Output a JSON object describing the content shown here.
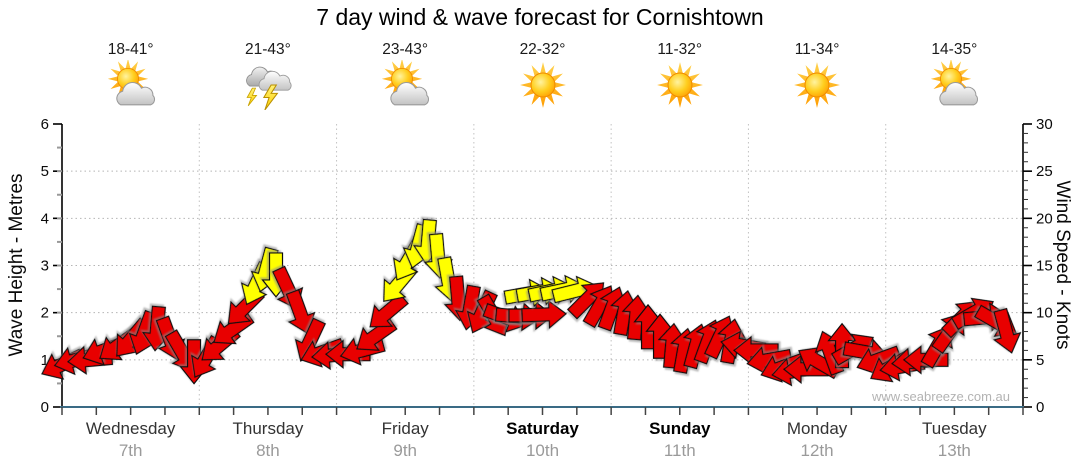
{
  "title": "7 day wind & wave forecast for Cornishtown",
  "watermark": "www.seabreeze.com.au",
  "axes": {
    "left_label": "Wave Height - Metres",
    "right_label": "Wind Speed - Knots",
    "left_ticks": [
      0,
      1,
      2,
      3,
      4,
      5,
      6
    ],
    "right_ticks": [
      0,
      5,
      10,
      15,
      20,
      25,
      30
    ]
  },
  "days": [
    {
      "name": "Wednesday",
      "date": "7th",
      "temps": "18-41°",
      "icon": "partly-cloudy",
      "weekend": false
    },
    {
      "name": "Thursday",
      "date": "8th",
      "temps": "21-43°",
      "icon": "thunderstorm",
      "weekend": false
    },
    {
      "name": "Friday",
      "date": "9th",
      "temps": "23-43°",
      "icon": "partly-cloudy",
      "weekend": false
    },
    {
      "name": "Saturday",
      "date": "10th",
      "temps": "22-32°",
      "icon": "sunny",
      "weekend": true
    },
    {
      "name": "Sunday",
      "date": "11th",
      "temps": "11-32°",
      "icon": "sunny",
      "weekend": true
    },
    {
      "name": "Monday",
      "date": "12th",
      "temps": "11-34°",
      "icon": "sunny",
      "weekend": false
    },
    {
      "name": "Tuesday",
      "date": "13th",
      "temps": "14-35°",
      "icon": "partly-cloudy",
      "weekend": false
    }
  ],
  "colors": {
    "arrow_red": "#e80000",
    "arrow_yellow": "#ffff00",
    "arrow_outline": "#111111",
    "bottom_axis": "#3a6b85",
    "side_axis": "#000000",
    "grid": "#b5b5b5",
    "day_separator": "#c2c2c2",
    "tick_label": "#0a0a0a",
    "date_gray": "#9a9a9a"
  },
  "chart_data": {
    "type": "wind-vector-timeseries",
    "title": "7 day wind & wave forecast for Cornishtown",
    "ylabel_left": "Wave Height - Metres",
    "ylabel_right": "Wind Speed - Knots",
    "y_left_range": [
      0,
      6
    ],
    "y_right_range": [
      0,
      30
    ],
    "grid": true,
    "x_categories": [
      "Wednesday 7th",
      "Thursday 8th",
      "Friday 9th",
      "Saturday 10th",
      "Sunday 11th",
      "Monday 12th",
      "Tuesday 13th"
    ],
    "temperatures": [
      "18-41°",
      "21-43°",
      "23-43°",
      "22-32°",
      "11-32°",
      "11-34°",
      "14-35°"
    ],
    "weather_icons": [
      "partly-cloudy",
      "thunderstorm",
      "partly-cloudy",
      "sunny",
      "sunny",
      "sunny",
      "partly-cloudy"
    ],
    "arrow_format": [
      "time_fraction_0to1",
      "wind_speed_knots",
      "arrow_direction_deg_cw_from_up",
      "color_key"
    ],
    "wind_arrows": [
      [
        0.0,
        4.5,
        245,
        "r"
      ],
      [
        0.0146,
        5.0,
        255,
        "r"
      ],
      [
        0.0291,
        5.0,
        265,
        "r"
      ],
      [
        0.0437,
        6.0,
        250,
        "r"
      ],
      [
        0.0583,
        6.5,
        235,
        "r"
      ],
      [
        0.0718,
        7.2,
        220,
        "r"
      ],
      [
        0.0853,
        7.8,
        200,
        "r"
      ],
      [
        0.0988,
        8.3,
        185,
        "r"
      ],
      [
        0.1124,
        7.2,
        160,
        "r"
      ],
      [
        0.1249,
        5.8,
        150,
        "r"
      ],
      [
        0.1374,
        4.8,
        180,
        "r"
      ],
      [
        0.1498,
        5.2,
        210,
        "r"
      ],
      [
        0.1634,
        6.5,
        230,
        "r"
      ],
      [
        0.1769,
        8.2,
        235,
        "r"
      ],
      [
        0.1894,
        10.5,
        225,
        "r"
      ],
      [
        0.2019,
        13.0,
        205,
        "y"
      ],
      [
        0.2123,
        14.5,
        195,
        "y"
      ],
      [
        0.2227,
        14.0,
        180,
        "y"
      ],
      [
        0.2352,
        12.5,
        155,
        "r"
      ],
      [
        0.2477,
        10.0,
        160,
        "r"
      ],
      [
        0.2581,
        7.0,
        205,
        "r"
      ],
      [
        0.2705,
        5.8,
        250,
        "r"
      ],
      [
        0.283,
        5.5,
        265,
        "r"
      ],
      [
        0.2976,
        5.6,
        270,
        "r"
      ],
      [
        0.3122,
        6.0,
        255,
        "r"
      ],
      [
        0.3257,
        7.5,
        235,
        "r"
      ],
      [
        0.3382,
        10.0,
        230,
        "r"
      ],
      [
        0.3496,
        13.0,
        220,
        "y"
      ],
      [
        0.36,
        15.5,
        210,
        "y"
      ],
      [
        0.3704,
        17.0,
        195,
        "y"
      ],
      [
        0.3808,
        17.5,
        185,
        "y"
      ],
      [
        0.3912,
        16.0,
        175,
        "y"
      ],
      [
        0.4017,
        13.5,
        170,
        "y"
      ],
      [
        0.4121,
        11.5,
        175,
        "r"
      ],
      [
        0.4246,
        10.5,
        190,
        "r"
      ],
      [
        0.437,
        10.0,
        205,
        "r"
      ],
      [
        0.4495,
        9.6,
        150,
        "r"
      ],
      [
        0.462,
        9.5,
        110,
        "r"
      ],
      [
        0.4745,
        9.6,
        95,
        "r"
      ],
      [
        0.488,
        9.7,
        90,
        "r"
      ],
      [
        0.5016,
        9.8,
        88,
        "r"
      ],
      [
        0.4838,
        12.0,
        80,
        "y"
      ],
      [
        0.4963,
        12.2,
        80,
        "y"
      ],
      [
        0.5088,
        12.3,
        78,
        "y"
      ],
      [
        0.5213,
        12.4,
        78,
        "y"
      ],
      [
        0.5338,
        12.3,
        76,
        "y"
      ],
      [
        0.5473,
        11.5,
        45,
        "r"
      ],
      [
        0.5598,
        10.8,
        30,
        "r"
      ],
      [
        0.5723,
        10.5,
        20,
        "r"
      ],
      [
        0.5848,
        10.0,
        10,
        "r"
      ],
      [
        0.5973,
        9.5,
        5,
        "r"
      ],
      [
        0.6098,
        8.5,
        0,
        "r"
      ],
      [
        0.6223,
        7.5,
        0,
        "r"
      ],
      [
        0.6348,
        6.5,
        5,
        "r"
      ],
      [
        0.6472,
        6.0,
        10,
        "r"
      ],
      [
        0.6597,
        6.5,
        15,
        "r"
      ],
      [
        0.6722,
        7.0,
        20,
        "r"
      ],
      [
        0.6847,
        7.5,
        25,
        "r"
      ],
      [
        0.6961,
        7.0,
        10,
        "r"
      ],
      [
        0.7086,
        6.5,
        280,
        "r"
      ],
      [
        0.7222,
        6.0,
        270,
        "r"
      ],
      [
        0.7357,
        5.0,
        260,
        "r"
      ],
      [
        0.7492,
        4.2,
        250,
        "r"
      ],
      [
        0.7617,
        3.8,
        260,
        "r"
      ],
      [
        0.7742,
        4.0,
        270,
        "r"
      ],
      [
        0.7867,
        4.8,
        300,
        "r"
      ],
      [
        0.7992,
        5.8,
        340,
        "r"
      ],
      [
        0.8117,
        6.5,
        0,
        "r"
      ],
      [
        0.8242,
        6.2,
        60,
        "r"
      ],
      [
        0.8366,
        5.8,
        100,
        "r"
      ],
      [
        0.8491,
        5.0,
        250,
        "r"
      ],
      [
        0.8616,
        4.2,
        240,
        "r"
      ],
      [
        0.8741,
        4.3,
        260,
        "r"
      ],
      [
        0.8866,
        4.8,
        265,
        "r"
      ],
      [
        0.899,
        5.0,
        270,
        "r"
      ],
      [
        0.9115,
        6.5,
        30,
        "r"
      ],
      [
        0.924,
        8.0,
        35,
        "r"
      ],
      [
        0.9365,
        9.5,
        45,
        "r"
      ],
      [
        0.949,
        10.0,
        60,
        "r"
      ],
      [
        0.9615,
        9.5,
        85,
        "r"
      ],
      [
        0.9729,
        9.0,
        120,
        "r"
      ],
      [
        0.9823,
        8.0,
        165,
        "r"
      ]
    ]
  }
}
